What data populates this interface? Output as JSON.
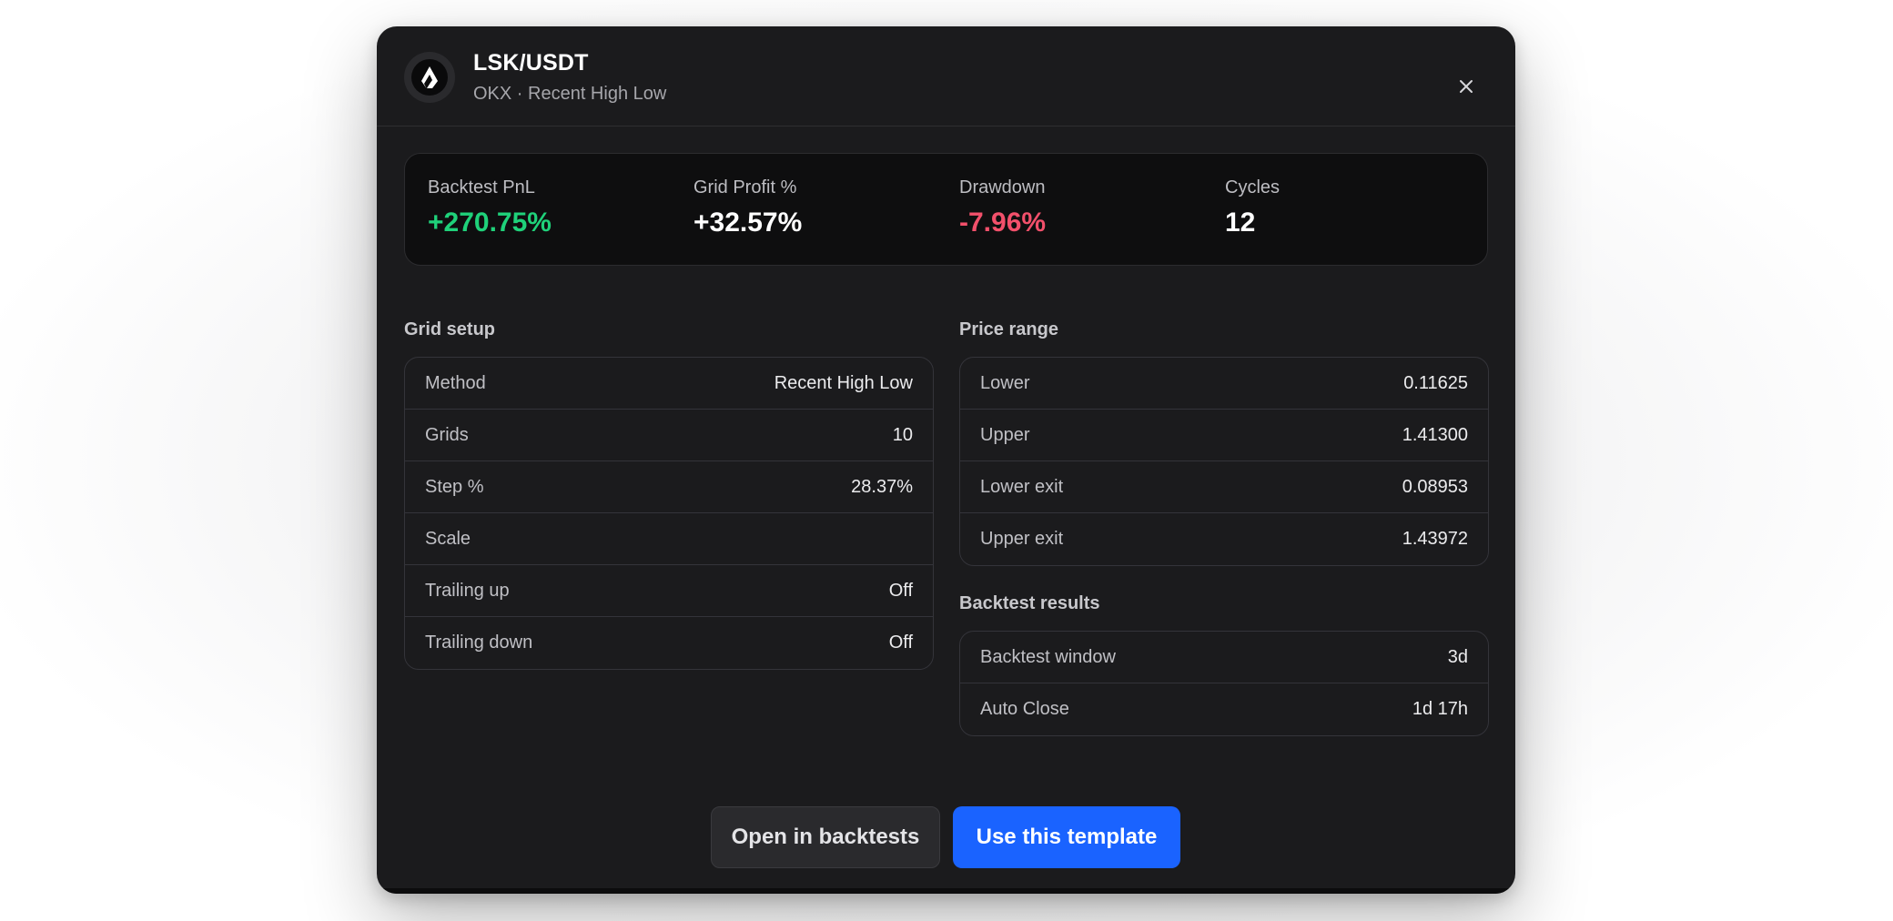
{
  "header": {
    "title": "LSK/USDT",
    "subtitle": "OKX · Recent High Low",
    "logo_icon": "lisk-logo-icon",
    "close_icon": "close-icon"
  },
  "stats": [
    {
      "label": "Backtest PnL",
      "value": "+270.75%",
      "color": "#1fd17a"
    },
    {
      "label": "Grid Profit %",
      "value": "+32.57%",
      "color": "#ffffff"
    },
    {
      "label": "Drawdown",
      "value": "-7.96%",
      "color": "#f2506b"
    },
    {
      "label": "Cycles",
      "value": "12",
      "color": "#ffffff"
    }
  ],
  "grid_setup": {
    "title": "Grid setup",
    "rows": [
      {
        "label": "Method",
        "value": "Recent High Low"
      },
      {
        "label": "Grids",
        "value": "10"
      },
      {
        "label": "Step %",
        "value": "28.37%"
      },
      {
        "label": "Scale",
        "value": ""
      },
      {
        "label": "Trailing up",
        "value": "Off"
      },
      {
        "label": "Trailing down",
        "value": "Off"
      }
    ]
  },
  "price_range": {
    "title": "Price range",
    "rows": [
      {
        "label": "Lower",
        "value": "0.11625"
      },
      {
        "label": "Upper",
        "value": "1.41300"
      },
      {
        "label": "Lower exit",
        "value": "0.08953"
      },
      {
        "label": "Upper exit",
        "value": "1.43972"
      }
    ]
  },
  "backtest_results": {
    "title": "Backtest results",
    "rows": [
      {
        "label": "Backtest window",
        "value": "3d"
      },
      {
        "label": "Auto Close",
        "value": "1d 17h"
      }
    ]
  },
  "actions": {
    "secondary_label": "Open in backtests",
    "primary_label": "Use this template",
    "primary_color": "#1a63ff"
  }
}
